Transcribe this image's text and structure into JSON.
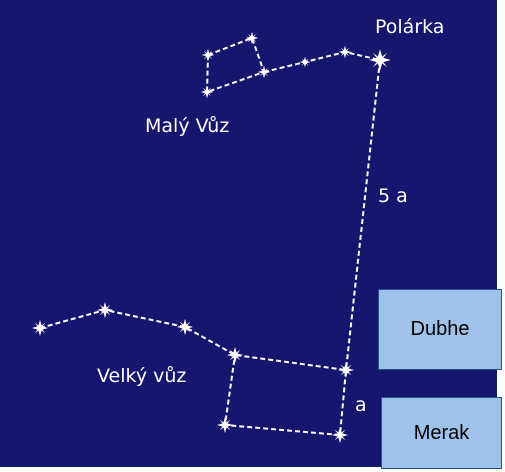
{
  "labels": {
    "polaris": "Polárka",
    "little_dipper": "Malý Vůz",
    "distance": "5 a",
    "big_dipper": "Velký vůz",
    "unit": "a"
  },
  "boxes": {
    "dubhe": "Dubhe",
    "merak": "Merak"
  }
}
